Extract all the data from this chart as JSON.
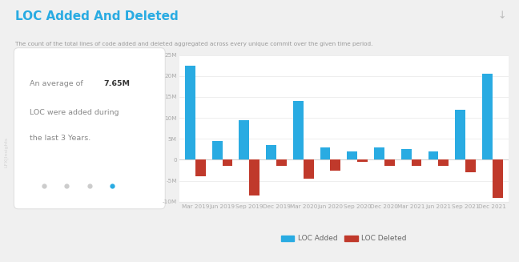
{
  "title": "LOC Added And Deleted",
  "subtitle": "The count of the total lines of code added and deleted aggregated across every unique commit over the given time period.",
  "annotation_bold": "7.65M",
  "categories": [
    "Mar 2019",
    "Jun 2019",
    "Sep 2019",
    "Dec 2019",
    "Mar 2020",
    "Jun 2020",
    "Sep 2020",
    "Dec 2020",
    "Mar 2021",
    "Jun 2021",
    "Sep 2021",
    "Dec 2021"
  ],
  "loc_added": [
    22500000,
    4500000,
    9500000,
    3500000,
    14000000,
    3000000,
    2000000,
    3000000,
    2500000,
    2000000,
    12000000,
    20500000
  ],
  "loc_deleted": [
    -4000000,
    -1500000,
    -8500000,
    -1500000,
    -4500000,
    -2500000,
    -500000,
    -1500000,
    -1500000,
    -1500000,
    -3000000,
    -9000000
  ],
  "color_added": "#29ABE2",
  "color_deleted": "#C0392B",
  "ylim_min": -10000000,
  "ylim_max": 25000000,
  "bg_color": "#f0f0f0",
  "chart_bg": "#ffffff",
  "title_color": "#29ABE2",
  "subtitle_color": "#999999",
  "grid_color": "#e8e8e8",
  "tick_color": "#aaaaaa",
  "legend_label_added": "LOC Added",
  "legend_label_deleted": "LOC Deleted",
  "lfx_text": "LFX|Insights",
  "dot_colors": [
    "#cccccc",
    "#cccccc",
    "#cccccc",
    "#29ABE2"
  ],
  "yticks": [
    -10000000,
    -5000000,
    0,
    5000000,
    10000000,
    15000000,
    20000000,
    25000000
  ]
}
